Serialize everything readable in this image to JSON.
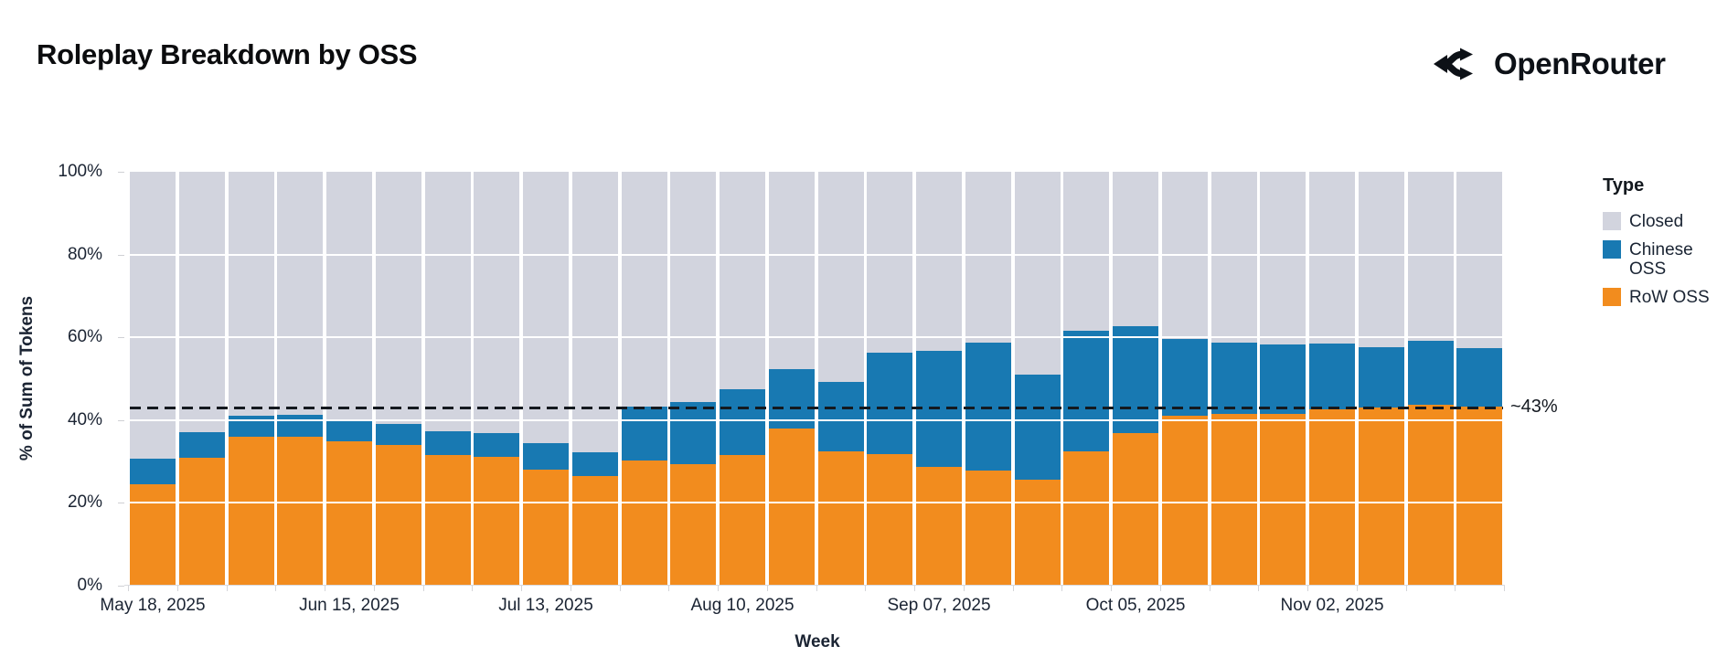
{
  "header": {
    "title": "Roleplay Breakdown by OSS",
    "brand": "OpenRouter"
  },
  "legend": {
    "title": "Type",
    "items": [
      {
        "label": "Closed",
        "color": "#D2D4DE"
      },
      {
        "label": "Chinese OSS",
        "color": "#1879B2"
      },
      {
        "label": "RoW OSS",
        "color": "#F28C1E"
      }
    ]
  },
  "annotation": {
    "label": "~43%",
    "value": 43
  },
  "chart_data": {
    "type": "bar",
    "stacked": true,
    "title": "Roleplay Breakdown by OSS",
    "xlabel": "Week",
    "ylabel": "% of Sum of Tokens",
    "ylim": [
      0,
      100
    ],
    "grid": "white-horizontal",
    "legend_position": "right",
    "y_ticks": [
      {
        "label": "0%",
        "value": 0
      },
      {
        "label": "20%",
        "value": 20
      },
      {
        "label": "40%",
        "value": 40
      },
      {
        "label": "60%",
        "value": 60
      },
      {
        "label": "80%",
        "value": 80
      },
      {
        "label": "100%",
        "value": 100
      }
    ],
    "x_ticks": [
      {
        "label": "May 18, 2025",
        "index": 0
      },
      {
        "label": "Jun 15, 2025",
        "index": 4
      },
      {
        "label": "Jul 13, 2025",
        "index": 8
      },
      {
        "label": "Aug 10, 2025",
        "index": 12
      },
      {
        "label": "Sep 07, 2025",
        "index": 16
      },
      {
        "label": "Oct 05, 2025",
        "index": 20
      },
      {
        "label": "Nov 02, 2025",
        "index": 24
      }
    ],
    "categories": [
      "May 18, 2025",
      "May 25, 2025",
      "Jun 01, 2025",
      "Jun 08, 2025",
      "Jun 15, 2025",
      "Jun 22, 2025",
      "Jun 29, 2025",
      "Jul 06, 2025",
      "Jul 13, 2025",
      "Jul 20, 2025",
      "Jul 27, 2025",
      "Aug 03, 2025",
      "Aug 10, 2025",
      "Aug 17, 2025",
      "Aug 24, 2025",
      "Aug 31, 2025",
      "Sep 07, 2025",
      "Sep 14, 2025",
      "Sep 21, 2025",
      "Sep 28, 2025",
      "Oct 05, 2025",
      "Oct 12, 2025",
      "Oct 19, 2025",
      "Oct 26, 2025",
      "Nov 02, 2025",
      "Nov 09, 2025",
      "Nov 16, 2025",
      "Nov 23, 2025"
    ],
    "series": [
      {
        "name": "RoW OSS",
        "color": "#F28C1E",
        "values": [
          24.4,
          31.0,
          36.0,
          36.0,
          34.9,
          34.1,
          31.6,
          31.2,
          28.1,
          26.6,
          30.3,
          29.3,
          31.6,
          38.0,
          32.5,
          31.9,
          28.8,
          27.9,
          25.7,
          32.5,
          36.9,
          41.0,
          41.6,
          41.4,
          42.6,
          43.1,
          43.7,
          43.2
        ]
      },
      {
        "name": "Chinese OSS",
        "color": "#1879B2",
        "values": [
          6.2,
          6.1,
          5.0,
          5.2,
          5.1,
          4.9,
          5.8,
          5.6,
          6.4,
          5.7,
          13.0,
          15.1,
          15.8,
          14.4,
          16.7,
          24.4,
          28.0,
          30.9,
          25.2,
          29.0,
          25.7,
          18.7,
          17.1,
          16.8,
          15.8,
          14.6,
          15.5,
          14.3
        ]
      },
      {
        "name": "Closed",
        "color": "#D2D4DE",
        "values": [
          69.4,
          62.9,
          59.0,
          58.8,
          60.0,
          61.0,
          62.6,
          63.2,
          65.5,
          67.7,
          56.7,
          55.6,
          52.6,
          47.6,
          50.8,
          43.7,
          43.2,
          41.2,
          49.1,
          38.5,
          37.4,
          40.3,
          41.3,
          41.8,
          41.6,
          42.3,
          40.8,
          42.5
        ]
      }
    ],
    "reference_line": {
      "value": 43,
      "style": "dashed",
      "color": "#14191f"
    }
  }
}
